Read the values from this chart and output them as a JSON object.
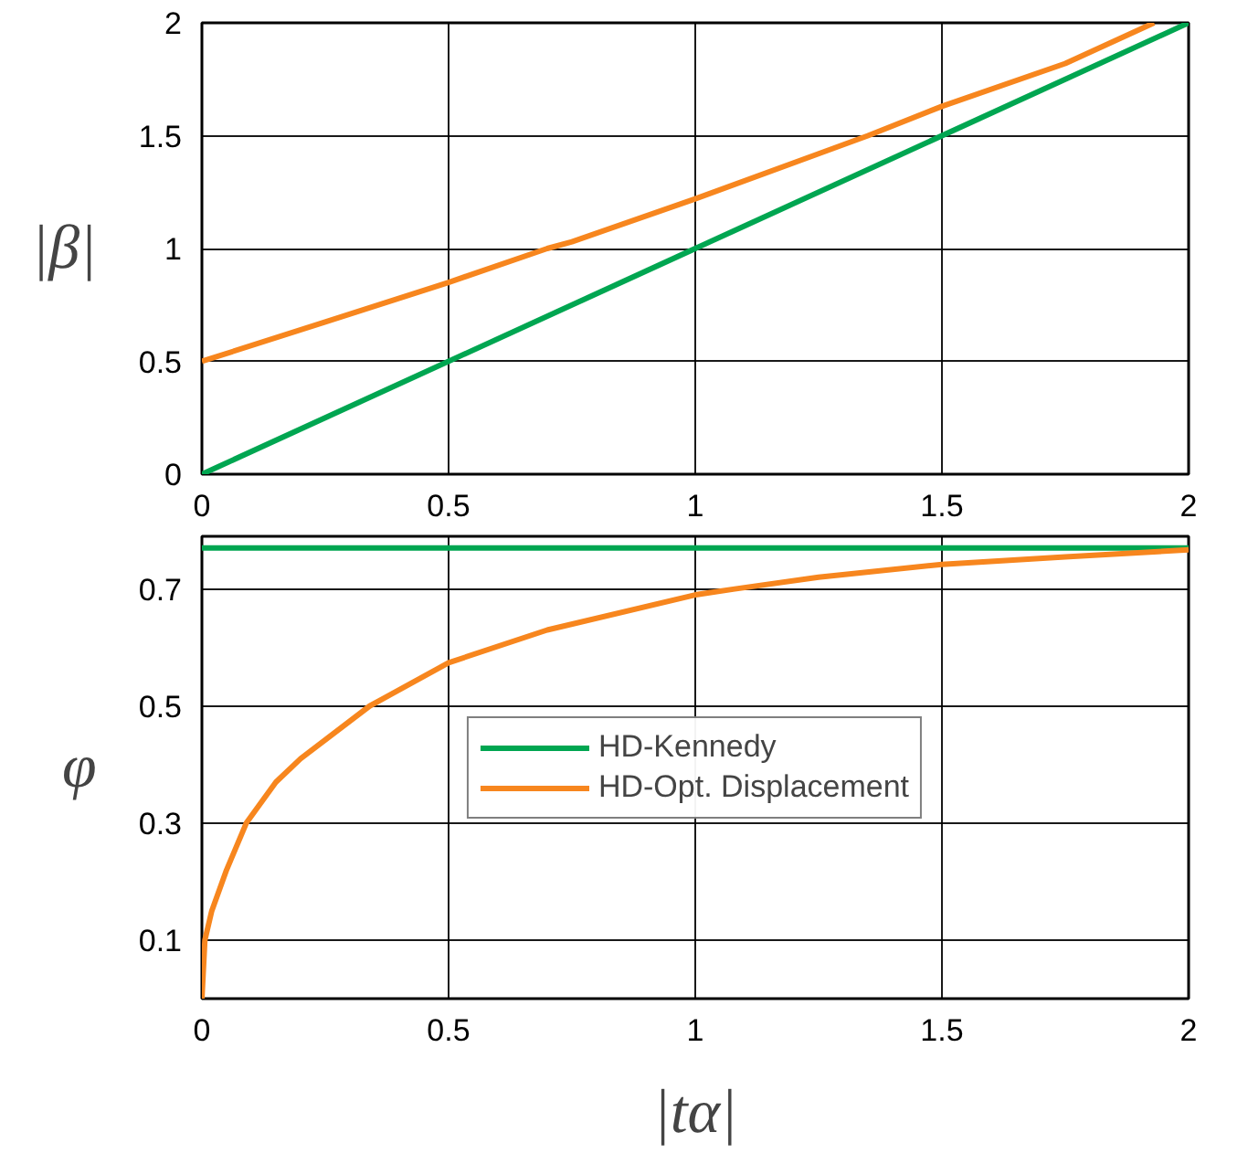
{
  "chart_data": [
    {
      "type": "line",
      "ylabel": "|β|",
      "xlim": [
        0,
        2
      ],
      "ylim": [
        0,
        2
      ],
      "xticks": [
        0,
        0.5,
        1,
        1.5,
        2
      ],
      "yticks": [
        0,
        0.5,
        1,
        1.5,
        2
      ],
      "grid": true,
      "series": [
        {
          "color": "#00a651",
          "x": [
            0,
            2
          ],
          "values": [
            0,
            2
          ]
        },
        {
          "color": "#f7861e",
          "x": [
            0,
            0.25,
            0.5,
            0.7,
            0.75,
            1.0,
            1.25,
            1.35,
            1.5,
            1.75,
            1.93
          ],
          "values": [
            0.5,
            0.675,
            0.85,
            1.0,
            1.03,
            1.22,
            1.42,
            1.5,
            1.63,
            1.82,
            2.0
          ]
        }
      ]
    },
    {
      "type": "line",
      "xlabel": "|tα|",
      "ylabel": "φ",
      "xlim": [
        0,
        2
      ],
      "ylim": [
        0,
        0.79
      ],
      "xticks": [
        0,
        0.5,
        1,
        1.5,
        2
      ],
      "yticks": [
        0.1,
        0.3,
        0.5,
        0.7
      ],
      "grid": true,
      "legend": "center",
      "series": [
        {
          "name": "HD-Kennedy",
          "color": "#00a651",
          "x": [
            0,
            2
          ],
          "values": [
            0.77,
            0.77
          ]
        },
        {
          "name": "HD-Opt. Displacement",
          "color": "#f7861e",
          "x": [
            0,
            0.006,
            0.02,
            0.05,
            0.09,
            0.15,
            0.2,
            0.34,
            0.5,
            0.7,
            1.0,
            1.08,
            1.25,
            1.5,
            1.75,
            2.0
          ],
          "values": [
            0,
            0.1,
            0.15,
            0.22,
            0.3,
            0.37,
            0.41,
            0.5,
            0.574,
            0.63,
            0.69,
            0.7,
            0.72,
            0.742,
            0.755,
            0.767
          ]
        }
      ]
    }
  ]
}
